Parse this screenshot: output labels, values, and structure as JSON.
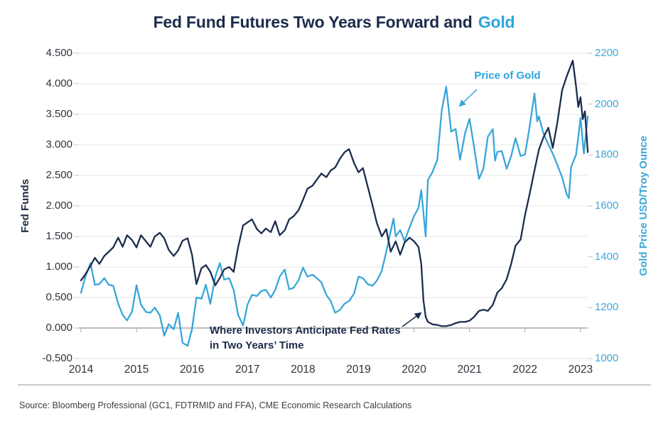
{
  "title": {
    "main": "Fed Fund Futures Two Years Forward and",
    "highlight": "Gold"
  },
  "colors": {
    "navy_line": "#1b2d4e",
    "blue_line": "#38a6da",
    "title_navy": "#1c2b4a",
    "title_blue": "#2aa5dd",
    "axis_text_dark": "#2e333b",
    "axis_text_blue": "#3ca7da",
    "grid": "#e4e4e4",
    "axis_line": "#a9a9a9",
    "side_tick": "#c6c6c6",
    "divider": "#c9c9c9",
    "source_text": "#3e3e3e"
  },
  "axes": {
    "left": {
      "title": "Fed Funds",
      "tick_labels": [
        "4.500",
        "4.000",
        "3.500",
        "3.000",
        "2.500",
        "2.000",
        "1.500",
        "1.000",
        "0.500",
        "0.000",
        "-0.500"
      ],
      "tick_values": [
        4.5,
        4.0,
        3.5,
        3.0,
        2.5,
        2.0,
        1.5,
        1.0,
        0.5,
        0.0,
        -0.5
      ]
    },
    "right": {
      "title": "Gold Price USD/Troy Ounce",
      "tick_labels": [
        "2200",
        "2000",
        "1800",
        "1600",
        "1400",
        "1200",
        "1000"
      ],
      "tick_values": [
        2200,
        2000,
        1800,
        1600,
        1400,
        1200,
        1000
      ]
    },
    "x": {
      "tick_labels": [
        "2014",
        "2015",
        "2016",
        "2017",
        "2018",
        "2019",
        "2020",
        "2021",
        "2022",
        "2023"
      ]
    }
  },
  "annotations": {
    "gold_label": "Price of Gold",
    "fed_line1": "Where Investors Anticipate Fed Rates",
    "fed_line2": "in Two Years’ Time"
  },
  "source": "Source: Bloomberg Professional (GC1, FDTRMID and FFA), CME Economic Research Calculations",
  "chart_data": {
    "type": "line",
    "title": "Fed Fund Futures Two Years Forward and Gold",
    "x_unit": "decimal years since 2014-01",
    "x_axis": {
      "labels": [
        "2014",
        "2015",
        "2016",
        "2017",
        "2018",
        "2019",
        "2020",
        "2021",
        "2022",
        "2023"
      ],
      "range": [
        0,
        9.13
      ]
    },
    "left_axis": {
      "label": "Fed Funds",
      "range": [
        -0.5,
        4.5
      ]
    },
    "right_axis": {
      "label": "Gold Price USD/Troy Ounce",
      "range": [
        1000,
        2200
      ]
    },
    "grid": "horizontal-only",
    "legend": "inline-annotations",
    "series": [
      {
        "name": "Where Investors Anticipate Fed Rates in Two Years' Time",
        "axis": "left",
        "color": "#1b2d4e",
        "points": [
          [
            0.0,
            0.78
          ],
          [
            0.08,
            0.88
          ],
          [
            0.17,
            1.02
          ],
          [
            0.25,
            1.15
          ],
          [
            0.33,
            1.05
          ],
          [
            0.42,
            1.18
          ],
          [
            0.5,
            1.25
          ],
          [
            0.58,
            1.32
          ],
          [
            0.67,
            1.48
          ],
          [
            0.75,
            1.33
          ],
          [
            0.83,
            1.52
          ],
          [
            0.92,
            1.44
          ],
          [
            1.0,
            1.32
          ],
          [
            1.08,
            1.52
          ],
          [
            1.17,
            1.42
          ],
          [
            1.25,
            1.33
          ],
          [
            1.33,
            1.5
          ],
          [
            1.42,
            1.56
          ],
          [
            1.5,
            1.47
          ],
          [
            1.58,
            1.28
          ],
          [
            1.67,
            1.18
          ],
          [
            1.75,
            1.27
          ],
          [
            1.83,
            1.43
          ],
          [
            1.92,
            1.47
          ],
          [
            2.0,
            1.2
          ],
          [
            2.08,
            0.72
          ],
          [
            2.17,
            0.98
          ],
          [
            2.25,
            1.03
          ],
          [
            2.33,
            0.92
          ],
          [
            2.42,
            0.7
          ],
          [
            2.5,
            0.82
          ],
          [
            2.58,
            0.96
          ],
          [
            2.67,
            1.0
          ],
          [
            2.75,
            0.92
          ],
          [
            2.83,
            1.32
          ],
          [
            2.92,
            1.68
          ],
          [
            3.0,
            1.73
          ],
          [
            3.08,
            1.78
          ],
          [
            3.17,
            1.62
          ],
          [
            3.25,
            1.55
          ],
          [
            3.33,
            1.63
          ],
          [
            3.42,
            1.57
          ],
          [
            3.5,
            1.75
          ],
          [
            3.58,
            1.52
          ],
          [
            3.67,
            1.6
          ],
          [
            3.75,
            1.78
          ],
          [
            3.83,
            1.83
          ],
          [
            3.92,
            1.93
          ],
          [
            4.0,
            2.1
          ],
          [
            4.08,
            2.28
          ],
          [
            4.17,
            2.33
          ],
          [
            4.25,
            2.43
          ],
          [
            4.33,
            2.53
          ],
          [
            4.42,
            2.47
          ],
          [
            4.5,
            2.58
          ],
          [
            4.58,
            2.63
          ],
          [
            4.67,
            2.78
          ],
          [
            4.75,
            2.88
          ],
          [
            4.83,
            2.93
          ],
          [
            4.92,
            2.7
          ],
          [
            5.0,
            2.55
          ],
          [
            5.08,
            2.62
          ],
          [
            5.17,
            2.3
          ],
          [
            5.25,
            2.02
          ],
          [
            5.33,
            1.72
          ],
          [
            5.42,
            1.5
          ],
          [
            5.5,
            1.62
          ],
          [
            5.58,
            1.25
          ],
          [
            5.67,
            1.42
          ],
          [
            5.75,
            1.2
          ],
          [
            5.83,
            1.4
          ],
          [
            5.92,
            1.48
          ],
          [
            6.0,
            1.42
          ],
          [
            6.08,
            1.33
          ],
          [
            6.13,
            1.05
          ],
          [
            6.17,
            0.45
          ],
          [
            6.21,
            0.18
          ],
          [
            6.25,
            0.1
          ],
          [
            6.33,
            0.06
          ],
          [
            6.42,
            0.05
          ],
          [
            6.5,
            0.03
          ],
          [
            6.58,
            0.03
          ],
          [
            6.67,
            0.05
          ],
          [
            6.75,
            0.08
          ],
          [
            6.83,
            0.1
          ],
          [
            6.92,
            0.1
          ],
          [
            7.0,
            0.12
          ],
          [
            7.08,
            0.18
          ],
          [
            7.17,
            0.28
          ],
          [
            7.25,
            0.3
          ],
          [
            7.33,
            0.28
          ],
          [
            7.42,
            0.38
          ],
          [
            7.5,
            0.58
          ],
          [
            7.58,
            0.65
          ],
          [
            7.67,
            0.8
          ],
          [
            7.75,
            1.05
          ],
          [
            7.83,
            1.35
          ],
          [
            7.92,
            1.45
          ],
          [
            8.0,
            1.85
          ],
          [
            8.08,
            2.18
          ],
          [
            8.17,
            2.58
          ],
          [
            8.25,
            2.92
          ],
          [
            8.33,
            3.12
          ],
          [
            8.42,
            3.28
          ],
          [
            8.5,
            2.95
          ],
          [
            8.58,
            3.35
          ],
          [
            8.67,
            3.9
          ],
          [
            8.75,
            4.12
          ],
          [
            8.86,
            4.38
          ],
          [
            8.92,
            3.95
          ],
          [
            8.96,
            3.62
          ],
          [
            9.0,
            3.78
          ],
          [
            9.04,
            3.42
          ],
          [
            9.08,
            3.55
          ],
          [
            9.13,
            2.88
          ]
        ]
      },
      {
        "name": "Price of Gold",
        "axis": "right",
        "color": "#38a6da",
        "points": [
          [
            0.0,
            1258
          ],
          [
            0.08,
            1322
          ],
          [
            0.17,
            1375
          ],
          [
            0.25,
            1290
          ],
          [
            0.33,
            1293
          ],
          [
            0.42,
            1316
          ],
          [
            0.5,
            1290
          ],
          [
            0.58,
            1286
          ],
          [
            0.67,
            1216
          ],
          [
            0.75,
            1172
          ],
          [
            0.83,
            1150
          ],
          [
            0.92,
            1186
          ],
          [
            1.0,
            1288
          ],
          [
            1.08,
            1212
          ],
          [
            1.17,
            1183
          ],
          [
            1.25,
            1180
          ],
          [
            1.33,
            1200
          ],
          [
            1.42,
            1170
          ],
          [
            1.5,
            1090
          ],
          [
            1.58,
            1135
          ],
          [
            1.67,
            1115
          ],
          [
            1.75,
            1180
          ],
          [
            1.83,
            1062
          ],
          [
            1.92,
            1050
          ],
          [
            2.0,
            1116
          ],
          [
            2.08,
            1240
          ],
          [
            2.17,
            1235
          ],
          [
            2.25,
            1290
          ],
          [
            2.33,
            1215
          ],
          [
            2.42,
            1322
          ],
          [
            2.5,
            1375
          ],
          [
            2.58,
            1310
          ],
          [
            2.67,
            1316
          ],
          [
            2.75,
            1270
          ],
          [
            2.83,
            1172
          ],
          [
            2.92,
            1130
          ],
          [
            3.0,
            1212
          ],
          [
            3.08,
            1250
          ],
          [
            3.17,
            1246
          ],
          [
            3.25,
            1266
          ],
          [
            3.33,
            1270
          ],
          [
            3.42,
            1240
          ],
          [
            3.5,
            1270
          ],
          [
            3.58,
            1322
          ],
          [
            3.67,
            1350
          ],
          [
            3.75,
            1272
          ],
          [
            3.83,
            1278
          ],
          [
            3.92,
            1308
          ],
          [
            4.0,
            1358
          ],
          [
            4.08,
            1322
          ],
          [
            4.17,
            1330
          ],
          [
            4.25,
            1316
          ],
          [
            4.33,
            1300
          ],
          [
            4.42,
            1250
          ],
          [
            4.5,
            1226
          ],
          [
            4.58,
            1180
          ],
          [
            4.67,
            1192
          ],
          [
            4.75,
            1216
          ],
          [
            4.83,
            1226
          ],
          [
            4.92,
            1256
          ],
          [
            5.0,
            1322
          ],
          [
            5.08,
            1316
          ],
          [
            5.17,
            1292
          ],
          [
            5.25,
            1286
          ],
          [
            5.33,
            1306
          ],
          [
            5.42,
            1345
          ],
          [
            5.5,
            1420
          ],
          [
            5.58,
            1500
          ],
          [
            5.63,
            1550
          ],
          [
            5.67,
            1480
          ],
          [
            5.75,
            1505
          ],
          [
            5.83,
            1462
          ],
          [
            5.92,
            1516
          ],
          [
            6.0,
            1560
          ],
          [
            6.08,
            1592
          ],
          [
            6.13,
            1662
          ],
          [
            6.21,
            1480
          ],
          [
            6.25,
            1702
          ],
          [
            6.33,
            1732
          ],
          [
            6.42,
            1782
          ],
          [
            6.5,
            1975
          ],
          [
            6.58,
            2068
          ],
          [
            6.67,
            1892
          ],
          [
            6.75,
            1902
          ],
          [
            6.83,
            1782
          ],
          [
            6.92,
            1886
          ],
          [
            7.0,
            1942
          ],
          [
            7.08,
            1836
          ],
          [
            7.17,
            1706
          ],
          [
            7.25,
            1746
          ],
          [
            7.33,
            1872
          ],
          [
            7.42,
            1902
          ],
          [
            7.46,
            1778
          ],
          [
            7.5,
            1812
          ],
          [
            7.58,
            1816
          ],
          [
            7.67,
            1746
          ],
          [
            7.75,
            1796
          ],
          [
            7.83,
            1866
          ],
          [
            7.92,
            1796
          ],
          [
            8.0,
            1802
          ],
          [
            8.08,
            1906
          ],
          [
            8.17,
            2042
          ],
          [
            8.22,
            1932
          ],
          [
            8.25,
            1952
          ],
          [
            8.33,
            1886
          ],
          [
            8.42,
            1842
          ],
          [
            8.5,
            1806
          ],
          [
            8.58,
            1762
          ],
          [
            8.67,
            1712
          ],
          [
            8.75,
            1646
          ],
          [
            8.79,
            1630
          ],
          [
            8.83,
            1752
          ],
          [
            8.92,
            1802
          ],
          [
            8.96,
            1872
          ],
          [
            9.0,
            1946
          ],
          [
            9.06,
            1806
          ],
          [
            9.13,
            1952
          ]
        ]
      }
    ]
  }
}
